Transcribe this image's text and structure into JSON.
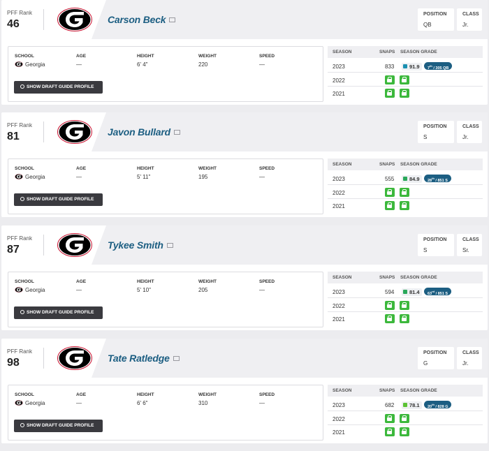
{
  "labels": {
    "rank": "PFF Rank",
    "position": "POSITION",
    "class": "CLASS",
    "school": "SCHOOL",
    "age": "AGE",
    "height": "HEIGHT",
    "weight": "WEIGHT",
    "speed": "SPEED",
    "draft_button": "SHOW DRAFT GUIDE PROFILE",
    "season": "SEASON",
    "snaps": "SNAPS",
    "season_grade": "SEASON GRADE"
  },
  "colors": {
    "name": "#1c5e82",
    "pill": "#1c5e82",
    "lock": "#3cb83c",
    "button": "#3a3a3f"
  },
  "players": [
    {
      "rank": "46",
      "name": "Carson Beck",
      "position": "QB",
      "class": "Jr.",
      "school": "Georgia",
      "age": "—",
      "height": "6' 4\"",
      "weight": "220",
      "speed": "—",
      "seasons": [
        {
          "year": "2023",
          "snaps": "833",
          "grade": "91.9",
          "grade_color": "#1a8fb0",
          "rank_num": "7",
          "rank_sup": "th",
          "rank_of": " / 305 QB"
        },
        {
          "year": "2022",
          "locked": true
        },
        {
          "year": "2021",
          "locked": true
        }
      ]
    },
    {
      "rank": "81",
      "name": "Javon Bullard",
      "position": "S",
      "class": "Jr.",
      "school": "Georgia",
      "age": "—",
      "height": "5' 11\"",
      "weight": "195",
      "speed": "—",
      "seasons": [
        {
          "year": "2023",
          "snaps": "555",
          "grade": "84.9",
          "grade_color": "#2aa85a",
          "rank_num": "28",
          "rank_sup": "th",
          "rank_of": " / 851 S"
        },
        {
          "year": "2022",
          "locked": true
        },
        {
          "year": "2021",
          "locked": true
        }
      ]
    },
    {
      "rank": "87",
      "name": "Tykee Smith",
      "position": "S",
      "class": "Sr.",
      "school": "Georgia",
      "age": "—",
      "height": "5' 10\"",
      "weight": "205",
      "speed": "—",
      "seasons": [
        {
          "year": "2023",
          "snaps": "594",
          "grade": "81.4",
          "grade_color": "#2aa85a",
          "rank_num": "63",
          "rank_sup": "rd",
          "rank_of": " / 851 S"
        },
        {
          "year": "2022",
          "locked": true
        },
        {
          "year": "2021",
          "locked": true
        }
      ]
    },
    {
      "rank": "98",
      "name": "Tate Ratledge",
      "position": "G",
      "class": "Jr.",
      "school": "Georgia",
      "age": "—",
      "height": "6' 6\"",
      "weight": "310",
      "speed": "—",
      "seasons": [
        {
          "year": "2023",
          "snaps": "682",
          "grade": "78.1",
          "grade_color": "#5cc234",
          "rank_num": "20",
          "rank_sup": "th",
          "rank_of": " / 828 G"
        },
        {
          "year": "2022",
          "locked": true
        },
        {
          "year": "2021",
          "locked": true
        }
      ]
    }
  ]
}
